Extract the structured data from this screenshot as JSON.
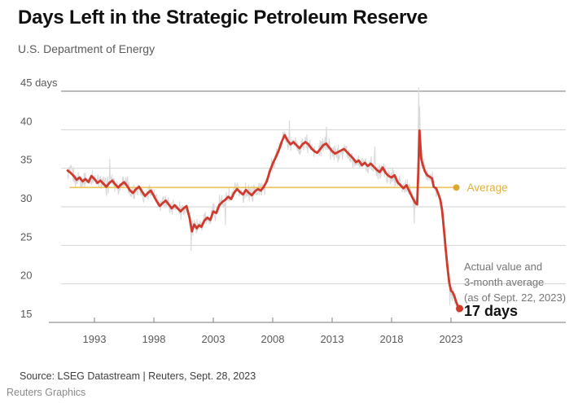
{
  "header": {
    "title": "Days Left in the Strategic Petroleum Reserve",
    "subtitle": "U.S. Department of Energy"
  },
  "annotation": {
    "line1": "Actual value and",
    "line2": "3-month average",
    "line3": "(as of Sept. 22, 2023)",
    "value_label": "17 days"
  },
  "footer": {
    "source": "Source: LSEG Datastream | Reuters, Sept. 28, 2023",
    "credit": "Reuters Graphics"
  },
  "colors": {
    "red_line": "#ce3a2d",
    "gray_line": "#d9d9d9",
    "gold_line": "#e9c353",
    "gold_dot": "#dda82f",
    "gold_label": "#dcb23c",
    "grid_light": "#d2d2d2",
    "grid_strong": "#929292",
    "axis_text": "#595959",
    "annotation_text": "#757575",
    "end_value_text": "#111111"
  },
  "chart_data": {
    "type": "line",
    "title": "Days Left in the Strategic Petroleum Reserve",
    "subtitle": "U.S. Department of Energy",
    "ylabel": "days",
    "ylim": [
      15,
      45
    ],
    "yticks": [
      15,
      20,
      25,
      30,
      35,
      40,
      45
    ],
    "ytick_top_suffix": " days",
    "xlim": [
      1990.5,
      2024.3
    ],
    "xticks": [
      1993,
      1998,
      2003,
      2008,
      2013,
      2018,
      2023
    ],
    "grid": true,
    "average_line": {
      "label": "Average",
      "value": 32.5,
      "span": [
        1990.9,
        2023.45
      ]
    },
    "end_point": {
      "x": 2023.72,
      "y": 16.8,
      "label": "17 days"
    },
    "series": [
      {
        "name": "3-month average",
        "role": "red_line",
        "points": [
          [
            1990.75,
            34.7
          ],
          [
            1991,
            34.4
          ],
          [
            1991.25,
            34.0
          ],
          [
            1991.5,
            33.5
          ],
          [
            1991.75,
            33.8
          ],
          [
            1992,
            33.3
          ],
          [
            1992.25,
            33.6
          ],
          [
            1992.5,
            33.2
          ],
          [
            1992.75,
            34.0
          ],
          [
            1993,
            33.6
          ],
          [
            1993.25,
            33.1
          ],
          [
            1993.5,
            33.4
          ],
          [
            1993.75,
            33.0
          ],
          [
            1994,
            32.6
          ],
          [
            1994.25,
            33.1
          ],
          [
            1994.5,
            33.4
          ],
          [
            1994.75,
            32.9
          ],
          [
            1995,
            32.5
          ],
          [
            1995.25,
            32.9
          ],
          [
            1995.5,
            33.2
          ],
          [
            1995.75,
            32.7
          ],
          [
            1996,
            32.1
          ],
          [
            1996.25,
            31.8
          ],
          [
            1996.5,
            32.3
          ],
          [
            1996.75,
            32.6
          ],
          [
            1997,
            32.0
          ],
          [
            1997.25,
            31.4
          ],
          [
            1997.5,
            31.8
          ],
          [
            1997.75,
            32.1
          ],
          [
            1998,
            31.4
          ],
          [
            1998.25,
            30.7
          ],
          [
            1998.5,
            30.1
          ],
          [
            1998.75,
            30.5
          ],
          [
            1999,
            30.8
          ],
          [
            1999.25,
            30.3
          ],
          [
            1999.5,
            29.8
          ],
          [
            1999.75,
            30.2
          ],
          [
            2000,
            29.8
          ],
          [
            2000.25,
            29.4
          ],
          [
            2000.5,
            29.8
          ],
          [
            2000.75,
            30.1
          ],
          [
            2001,
            28.6
          ],
          [
            2001.2,
            26.8
          ],
          [
            2001.4,
            27.7
          ],
          [
            2001.6,
            27.2
          ],
          [
            2001.8,
            27.6
          ],
          [
            2002,
            27.4
          ],
          [
            2002.25,
            28.2
          ],
          [
            2002.5,
            28.6
          ],
          [
            2002.75,
            28.3
          ],
          [
            2003,
            29.4
          ],
          [
            2003.25,
            29.2
          ],
          [
            2003.5,
            30.2
          ],
          [
            2003.75,
            30.6
          ],
          [
            2004,
            30.9
          ],
          [
            2004.25,
            31.3
          ],
          [
            2004.5,
            31.0
          ],
          [
            2004.75,
            31.8
          ],
          [
            2005,
            32.3
          ],
          [
            2005.25,
            31.9
          ],
          [
            2005.5,
            31.6
          ],
          [
            2005.75,
            32.2
          ],
          [
            2006,
            31.8
          ],
          [
            2006.25,
            31.5
          ],
          [
            2006.5,
            32.0
          ],
          [
            2006.75,
            32.3
          ],
          [
            2007,
            32.1
          ],
          [
            2007.25,
            32.6
          ],
          [
            2007.5,
            33.3
          ],
          [
            2007.75,
            34.6
          ],
          [
            2008,
            35.6
          ],
          [
            2008.25,
            36.4
          ],
          [
            2008.5,
            37.3
          ],
          [
            2008.75,
            38.4
          ],
          [
            2009,
            39.3
          ],
          [
            2009.25,
            38.6
          ],
          [
            2009.5,
            38.1
          ],
          [
            2009.75,
            38.4
          ],
          [
            2010,
            38.0
          ],
          [
            2010.25,
            37.6
          ],
          [
            2010.5,
            38.1
          ],
          [
            2010.75,
            38.4
          ],
          [
            2011,
            38.1
          ],
          [
            2011.25,
            37.6
          ],
          [
            2011.5,
            37.2
          ],
          [
            2011.75,
            37.0
          ],
          [
            2012,
            37.5
          ],
          [
            2012.25,
            38.0
          ],
          [
            2012.5,
            38.2
          ],
          [
            2012.75,
            37.7
          ],
          [
            2013,
            37.2
          ],
          [
            2013.25,
            36.9
          ],
          [
            2013.5,
            37.1
          ],
          [
            2013.75,
            37.3
          ],
          [
            2014,
            37.5
          ],
          [
            2014.25,
            37.1
          ],
          [
            2014.5,
            36.7
          ],
          [
            2014.75,
            36.3
          ],
          [
            2015,
            35.8
          ],
          [
            2015.25,
            36.0
          ],
          [
            2015.5,
            35.4
          ],
          [
            2015.75,
            35.7
          ],
          [
            2016,
            35.3
          ],
          [
            2016.25,
            35.6
          ],
          [
            2016.5,
            35.2
          ],
          [
            2016.75,
            34.8
          ],
          [
            2017,
            34.5
          ],
          [
            2017.25,
            35.1
          ],
          [
            2017.5,
            34.4
          ],
          [
            2017.75,
            34.0
          ],
          [
            2018,
            33.8
          ],
          [
            2018.25,
            34.1
          ],
          [
            2018.5,
            33.2
          ],
          [
            2018.75,
            32.8
          ],
          [
            2019,
            32.4
          ],
          [
            2019.25,
            32.8
          ],
          [
            2019.5,
            32.0
          ],
          [
            2019.75,
            31.2
          ],
          [
            2020,
            30.5
          ],
          [
            2020.15,
            30.3
          ],
          [
            2020.25,
            34.5
          ],
          [
            2020.35,
            39.9
          ],
          [
            2020.5,
            36.2
          ],
          [
            2020.65,
            35.3
          ],
          [
            2020.8,
            34.6
          ],
          [
            2021,
            34.1
          ],
          [
            2021.2,
            33.9
          ],
          [
            2021.4,
            33.7
          ],
          [
            2021.55,
            32.6
          ],
          [
            2021.75,
            32.4
          ],
          [
            2021.95,
            31.6
          ],
          [
            2022.1,
            30.9
          ],
          [
            2022.25,
            29.6
          ],
          [
            2022.4,
            27.2
          ],
          [
            2022.55,
            24.6
          ],
          [
            2022.7,
            22.2
          ],
          [
            2022.85,
            20.2
          ],
          [
            2023,
            19.1
          ],
          [
            2023.15,
            18.9
          ],
          [
            2023.3,
            18.3
          ],
          [
            2023.45,
            17.6
          ],
          [
            2023.6,
            17.0
          ],
          [
            2023.72,
            16.8
          ]
        ]
      },
      {
        "name": "Actual value",
        "role": "gray_line",
        "derived_from": "3-month average",
        "noise_amplitude": 1.4,
        "samples_per_year": 26,
        "spikes": [
          [
            1994.3,
            36.2
          ],
          [
            2001.15,
            24.3
          ],
          [
            2004.0,
            27.6
          ],
          [
            2009.4,
            41.2
          ],
          [
            2012.5,
            40.4
          ],
          [
            2016.6,
            37.8
          ],
          [
            2019.9,
            27.8
          ],
          [
            2020.25,
            41.0
          ],
          [
            2020.3,
            45.5
          ],
          [
            2020.36,
            43.0
          ],
          [
            2022.9,
            17.2
          ]
        ]
      }
    ]
  }
}
